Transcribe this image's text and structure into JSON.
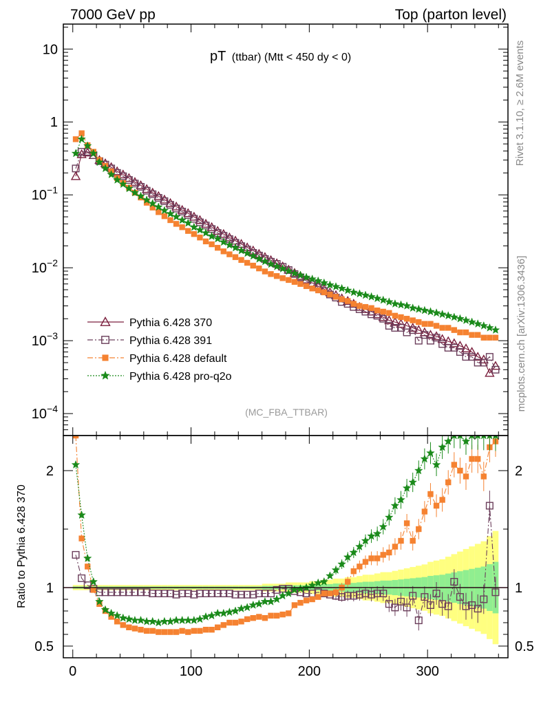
{
  "header": {
    "left": "7000 GeV pp",
    "right": "Top (parton level)"
  },
  "side": {
    "rivet": "Rivet 3.1.10, ≥ 2.6M events",
    "mcplots": "mcplots.cern.ch [arXiv:1306.3436]"
  },
  "chart_data": {
    "type": "scatter",
    "title": "pT (ttbar) (Mtt < 450 dy < 0)",
    "title_main": "pT",
    "title_sub": "(ttbar) (Mtt < 450 dy < 0)",
    "watermark": "(MC_FBA_TTBAR)",
    "x_ticks": [
      "0",
      "100",
      "200",
      "300"
    ],
    "xlim": [
      -8,
      368
    ],
    "main": {
      "ylog": true,
      "ylim": [
        5e-05,
        22
      ],
      "y_tick_labels": [
        {
          "value": 0.0001,
          "base": "10",
          "exp": "−4"
        },
        {
          "value": 0.001,
          "base": "10",
          "exp": "−3"
        },
        {
          "value": 0.01,
          "base": "10",
          "exp": "−2"
        },
        {
          "value": 0.1,
          "base": "10",
          "exp": "−1"
        },
        {
          "value": 1,
          "base": "1",
          "exp": ""
        },
        {
          "value": 10,
          "base": "10",
          "exp": ""
        }
      ]
    },
    "ratio": {
      "ylabel": "Ratio to Pythia 6.428 370",
      "ylim": [
        0.4,
        2.3
      ],
      "y_ticks": [
        "0.5",
        "1",
        "2"
      ]
    },
    "legend": {
      "placement": "lower-left",
      "entries": [
        {
          "name": "Pythia 6.428 370",
          "color": "#7a1f3d",
          "marker": "triangle-open",
          "dash": "solid"
        },
        {
          "name": "Pythia 6.428 391",
          "color": "#6a3d5a",
          "marker": "square-open",
          "dash": "dashdot"
        },
        {
          "name": "Pythia 6.428 default",
          "color": "#f58231",
          "marker": "square-filled",
          "dash": "dashdot"
        },
        {
          "name": "Pythia 6.428 pro-q2o",
          "color": "#1a8a1a",
          "marker": "star",
          "dash": "dotted"
        }
      ]
    },
    "series": [
      {
        "name": "Pythia 6.428 370",
        "x": [
          2.5,
          7.5,
          12.5,
          17.5,
          22.5,
          27.5,
          32.5,
          37.5,
          42.5,
          47.5,
          52.5,
          57.5,
          62.5,
          67.5,
          72.5,
          77.5,
          82.5,
          87.5,
          92.5,
          97.5,
          102.5,
          107.5,
          112.5,
          117.5,
          122.5,
          127.5,
          132.5,
          137.5,
          142.5,
          147.5,
          152.5,
          157.5,
          162.5,
          167.5,
          172.5,
          177.5,
          182.5,
          187.5,
          192.5,
          197.5,
          202.5,
          207.5,
          212.5,
          217.5,
          222.5,
          227.5,
          232.5,
          237.5,
          242.5,
          247.5,
          252.5,
          257.5,
          262.5,
          267.5,
          272.5,
          277.5,
          282.5,
          287.5,
          292.5,
          297.5,
          302.5,
          307.5,
          312.5,
          317.5,
          322.5,
          327.5,
          332.5,
          337.5,
          342.5,
          347.5,
          352.5,
          357.5
        ],
        "y": [
          0.18,
          0.36,
          0.38,
          0.35,
          0.3,
          0.27,
          0.24,
          0.21,
          0.19,
          0.17,
          0.15,
          0.135,
          0.12,
          0.107,
          0.096,
          0.086,
          0.077,
          0.069,
          0.062,
          0.056,
          0.05,
          0.045,
          0.04,
          0.036,
          0.032,
          0.029,
          0.026,
          0.0235,
          0.0212,
          0.019,
          0.0172,
          0.0155,
          0.014,
          0.0127,
          0.0115,
          0.0104,
          0.0094,
          0.0085,
          0.0077,
          0.0069,
          0.0062,
          0.0056,
          0.0051,
          0.0046,
          0.0042,
          0.0038,
          0.0035,
          0.0032,
          0.0029,
          0.0027,
          0.0025,
          0.0023,
          0.0021,
          0.0019,
          0.0018,
          0.0017,
          0.0016,
          0.0015,
          0.0014,
          0.0013,
          0.0012,
          0.00115,
          0.00105,
          0.00098,
          0.00092,
          0.00085,
          0.00078,
          0.0007,
          0.0006,
          0.00055,
          0.00036,
          0.00045
        ],
        "ratio": [
          1,
          1,
          1,
          1,
          1,
          1,
          1,
          1,
          1,
          1,
          1,
          1,
          1,
          1,
          1,
          1,
          1,
          1,
          1,
          1,
          1,
          1,
          1,
          1,
          1,
          1,
          1,
          1,
          1,
          1,
          1,
          1,
          1,
          1,
          1,
          1,
          1,
          1,
          1,
          1,
          1,
          1,
          1,
          1,
          1,
          1,
          1,
          1,
          1,
          1,
          1,
          1,
          1,
          1,
          1,
          1,
          1,
          1,
          1,
          1,
          1,
          1,
          1,
          1,
          1,
          1,
          1,
          1,
          1,
          1,
          1,
          1
        ],
        "band_lo": [
          0.99,
          0.99,
          0.99,
          0.99,
          0.99,
          0.99,
          0.99,
          0.99,
          0.99,
          0.99,
          0.99,
          0.99,
          0.99,
          0.99,
          0.99,
          0.99,
          0.99,
          0.99,
          0.99,
          0.99,
          0.99,
          0.99,
          0.99,
          0.99,
          0.99,
          0.99,
          0.99,
          0.99,
          0.99,
          0.99,
          0.99,
          0.99,
          0.985,
          0.985,
          0.985,
          0.985,
          0.98,
          0.98,
          0.98,
          0.98,
          0.975,
          0.975,
          0.97,
          0.97,
          0.965,
          0.965,
          0.96,
          0.96,
          0.955,
          0.95,
          0.95,
          0.945,
          0.94,
          0.94,
          0.935,
          0.93,
          0.925,
          0.92,
          0.915,
          0.91,
          0.9,
          0.895,
          0.89,
          0.88,
          0.87,
          0.86,
          0.85,
          0.84,
          0.83,
          0.82,
          0.8,
          0.78
        ],
        "band_hi": [
          1.01,
          1.01,
          1.01,
          1.01,
          1.01,
          1.01,
          1.01,
          1.01,
          1.01,
          1.01,
          1.01,
          1.01,
          1.01,
          1.01,
          1.01,
          1.01,
          1.01,
          1.01,
          1.01,
          1.01,
          1.01,
          1.01,
          1.01,
          1.01,
          1.01,
          1.01,
          1.01,
          1.01,
          1.01,
          1.01,
          1.01,
          1.01,
          1.015,
          1.015,
          1.015,
          1.015,
          1.02,
          1.02,
          1.02,
          1.02,
          1.025,
          1.025,
          1.03,
          1.03,
          1.035,
          1.035,
          1.04,
          1.04,
          1.045,
          1.05,
          1.05,
          1.055,
          1.06,
          1.06,
          1.065,
          1.07,
          1.075,
          1.08,
          1.085,
          1.09,
          1.1,
          1.105,
          1.11,
          1.12,
          1.13,
          1.14,
          1.15,
          1.16,
          1.17,
          1.18,
          1.2,
          1.22
        ]
      },
      {
        "name": "Pythia 6.428 391",
        "x": [
          2.5,
          7.5,
          12.5,
          17.5,
          22.5,
          27.5,
          32.5,
          37.5,
          42.5,
          47.5,
          52.5,
          57.5,
          62.5,
          67.5,
          72.5,
          77.5,
          82.5,
          87.5,
          92.5,
          97.5,
          102.5,
          107.5,
          112.5,
          117.5,
          122.5,
          127.5,
          132.5,
          137.5,
          142.5,
          147.5,
          152.5,
          157.5,
          162.5,
          167.5,
          172.5,
          177.5,
          182.5,
          187.5,
          192.5,
          197.5,
          202.5,
          207.5,
          212.5,
          217.5,
          222.5,
          227.5,
          232.5,
          237.5,
          242.5,
          247.5,
          252.5,
          257.5,
          262.5,
          267.5,
          272.5,
          277.5,
          282.5,
          287.5,
          292.5,
          297.5,
          302.5,
          307.5,
          312.5,
          317.5,
          322.5,
          327.5,
          332.5,
          337.5,
          342.5,
          347.5,
          352.5,
          357.5
        ],
        "y": [
          0.23,
          0.39,
          0.39,
          0.35,
          0.29,
          0.26,
          0.23,
          0.2,
          0.18,
          0.16,
          0.143,
          0.129,
          0.114,
          0.102,
          0.091,
          0.082,
          0.073,
          0.065,
          0.059,
          0.053,
          0.047,
          0.042,
          0.038,
          0.034,
          0.03,
          0.0275,
          0.0247,
          0.022,
          0.0198,
          0.0178,
          0.016,
          0.0147,
          0.0132,
          0.0121,
          0.0113,
          0.0103,
          0.0093,
          0.0082,
          0.0074,
          0.0066,
          0.0059,
          0.0054,
          0.0048,
          0.0043,
          0.0039,
          0.0034,
          0.0032,
          0.0029,
          0.0027,
          0.0025,
          0.0023,
          0.0022,
          0.002,
          0.0016,
          0.0015,
          0.0015,
          0.0013,
          0.0014,
          0.001,
          0.0012,
          0.001,
          0.0011,
          0.0009,
          0.0008,
          0.0008,
          0.0007,
          0.0006,
          0.0006,
          0.0005,
          0.0005,
          0.0006,
          0.0004
        ],
        "ratio": [
          1.28,
          1.08,
          1.02,
          0.99,
          0.96,
          0.96,
          0.96,
          0.96,
          0.96,
          0.96,
          0.96,
          0.96,
          0.96,
          0.95,
          0.95,
          0.95,
          0.95,
          0.94,
          0.95,
          0.95,
          0.94,
          0.95,
          0.95,
          0.95,
          0.95,
          0.95,
          0.95,
          0.94,
          0.94,
          0.94,
          0.94,
          0.95,
          0.95,
          0.95,
          0.98,
          0.99,
          0.99,
          0.97,
          0.96,
          0.95,
          0.95,
          0.96,
          0.95,
          0.94,
          0.93,
          0.92,
          0.93,
          0.93,
          0.94,
          0.95,
          0.94,
          0.95,
          0.95,
          0.86,
          0.83,
          0.88,
          0.83,
          0.93,
          0.72,
          0.92,
          0.85,
          0.95,
          0.86,
          0.84,
          1.05,
          0.92,
          0.84,
          0.85,
          0.82,
          0.9,
          1.7,
          0.96
        ]
      },
      {
        "name": "Pythia 6.428 default",
        "x": [
          2.5,
          7.5,
          12.5,
          17.5,
          22.5,
          27.5,
          32.5,
          37.5,
          42.5,
          47.5,
          52.5,
          57.5,
          62.5,
          67.5,
          72.5,
          77.5,
          82.5,
          87.5,
          92.5,
          97.5,
          102.5,
          107.5,
          112.5,
          117.5,
          122.5,
          127.5,
          132.5,
          137.5,
          142.5,
          147.5,
          152.5,
          157.5,
          162.5,
          167.5,
          172.5,
          177.5,
          182.5,
          187.5,
          192.5,
          197.5,
          202.5,
          207.5,
          212.5,
          217.5,
          222.5,
          227.5,
          232.5,
          237.5,
          242.5,
          247.5,
          252.5,
          257.5,
          262.5,
          267.5,
          272.5,
          277.5,
          282.5,
          287.5,
          292.5,
          297.5,
          302.5,
          307.5,
          312.5,
          317.5,
          322.5,
          327.5,
          332.5,
          337.5,
          342.5,
          347.5,
          352.5,
          357.5
        ],
        "y": [
          0.58,
          0.7,
          0.48,
          0.39,
          0.3,
          0.25,
          0.21,
          0.17,
          0.145,
          0.125,
          0.107,
          0.092,
          0.078,
          0.067,
          0.058,
          0.051,
          0.045,
          0.04,
          0.036,
          0.032,
          0.029,
          0.026,
          0.023,
          0.021,
          0.0188,
          0.0168,
          0.0153,
          0.014,
          0.0128,
          0.0117,
          0.0107,
          0.0098,
          0.0089,
          0.0082,
          0.0077,
          0.0072,
          0.0068,
          0.0064,
          0.006,
          0.0056,
          0.0052,
          0.0049,
          0.0046,
          0.0043,
          0.004,
          0.0037,
          0.0035,
          0.0032,
          0.003,
          0.0029,
          0.0028,
          0.0026,
          0.0025,
          0.0024,
          0.0022,
          0.0021,
          0.002,
          0.0019,
          0.0018,
          0.0017,
          0.0017,
          0.0016,
          0.0015,
          0.0015,
          0.0014,
          0.0013,
          0.0013,
          0.0012,
          0.0012,
          0.0011,
          0.0011,
          0.0011
        ],
        "ratio": [
          2.3,
          1.42,
          1.18,
          0.98,
          0.86,
          0.8,
          0.75,
          0.71,
          0.68,
          0.66,
          0.65,
          0.64,
          0.63,
          0.63,
          0.62,
          0.62,
          0.62,
          0.62,
          0.63,
          0.62,
          0.63,
          0.63,
          0.64,
          0.64,
          0.66,
          0.68,
          0.7,
          0.7,
          0.71,
          0.73,
          0.74,
          0.75,
          0.74,
          0.76,
          0.76,
          0.77,
          0.78,
          0.85,
          0.87,
          0.89,
          0.9,
          0.92,
          0.95,
          0.95,
          0.96,
          1.0,
          1.05,
          1.14,
          1.18,
          1.22,
          1.25,
          1.25,
          1.28,
          1.3,
          1.35,
          1.4,
          1.55,
          1.4,
          1.5,
          1.65,
          1.8,
          1.7,
          1.75,
          1.9,
          2.05,
          2.0,
          1.95,
          2.1,
          2.1,
          1.95,
          2.2,
          2.25
        ]
      },
      {
        "name": "Pythia 6.428 pro-q2o",
        "x": [
          2.5,
          7.5,
          12.5,
          17.5,
          22.5,
          27.5,
          32.5,
          37.5,
          42.5,
          47.5,
          52.5,
          57.5,
          62.5,
          67.5,
          72.5,
          77.5,
          82.5,
          87.5,
          92.5,
          97.5,
          102.5,
          107.5,
          112.5,
          117.5,
          122.5,
          127.5,
          132.5,
          137.5,
          142.5,
          147.5,
          152.5,
          157.5,
          162.5,
          167.5,
          172.5,
          177.5,
          182.5,
          187.5,
          192.5,
          197.5,
          202.5,
          207.5,
          212.5,
          217.5,
          222.5,
          227.5,
          232.5,
          237.5,
          242.5,
          247.5,
          252.5,
          257.5,
          262.5,
          267.5,
          272.5,
          277.5,
          282.5,
          287.5,
          292.5,
          297.5,
          302.5,
          307.5,
          312.5,
          317.5,
          322.5,
          327.5,
          332.5,
          337.5,
          342.5,
          347.5,
          352.5,
          357.5
        ],
        "y": [
          0.37,
          0.58,
          0.47,
          0.37,
          0.28,
          0.23,
          0.19,
          0.16,
          0.14,
          0.122,
          0.107,
          0.096,
          0.085,
          0.076,
          0.068,
          0.061,
          0.055,
          0.05,
          0.045,
          0.041,
          0.036,
          0.033,
          0.03,
          0.027,
          0.025,
          0.0225,
          0.0205,
          0.0188,
          0.0172,
          0.0158,
          0.0145,
          0.0132,
          0.0122,
          0.0112,
          0.0104,
          0.0097,
          0.009,
          0.0084,
          0.0079,
          0.0074,
          0.007,
          0.0066,
          0.0062,
          0.0058,
          0.0055,
          0.0052,
          0.0049,
          0.0046,
          0.0044,
          0.0042,
          0.004,
          0.0038,
          0.0036,
          0.0034,
          0.0032,
          0.0031,
          0.003,
          0.0028,
          0.0027,
          0.0026,
          0.0025,
          0.0024,
          0.0023,
          0.0022,
          0.0021,
          0.002,
          0.0019,
          0.0018,
          0.0017,
          0.0016,
          0.0015,
          0.0014
        ],
        "ratio": [
          2.05,
          1.62,
          1.25,
          1.05,
          0.88,
          0.81,
          0.78,
          0.76,
          0.74,
          0.73,
          0.72,
          0.72,
          0.71,
          0.71,
          0.7,
          0.71,
          0.71,
          0.72,
          0.72,
          0.72,
          0.72,
          0.73,
          0.75,
          0.76,
          0.78,
          0.78,
          0.79,
          0.8,
          0.82,
          0.83,
          0.85,
          0.86,
          0.88,
          0.88,
          0.9,
          0.93,
          0.95,
          0.98,
          0.99,
          1.0,
          1.02,
          1.04,
          1.05,
          1.1,
          1.15,
          1.2,
          1.26,
          1.3,
          1.35,
          1.4,
          1.44,
          1.46,
          1.52,
          1.6,
          1.7,
          1.75,
          1.85,
          1.9,
          2.0,
          2.1,
          2.15,
          2.05,
          2.2,
          2.25,
          2.3,
          2.3,
          2.25,
          2.3,
          2.3,
          2.3,
          2.3,
          2.3
        ]
      }
    ]
  }
}
